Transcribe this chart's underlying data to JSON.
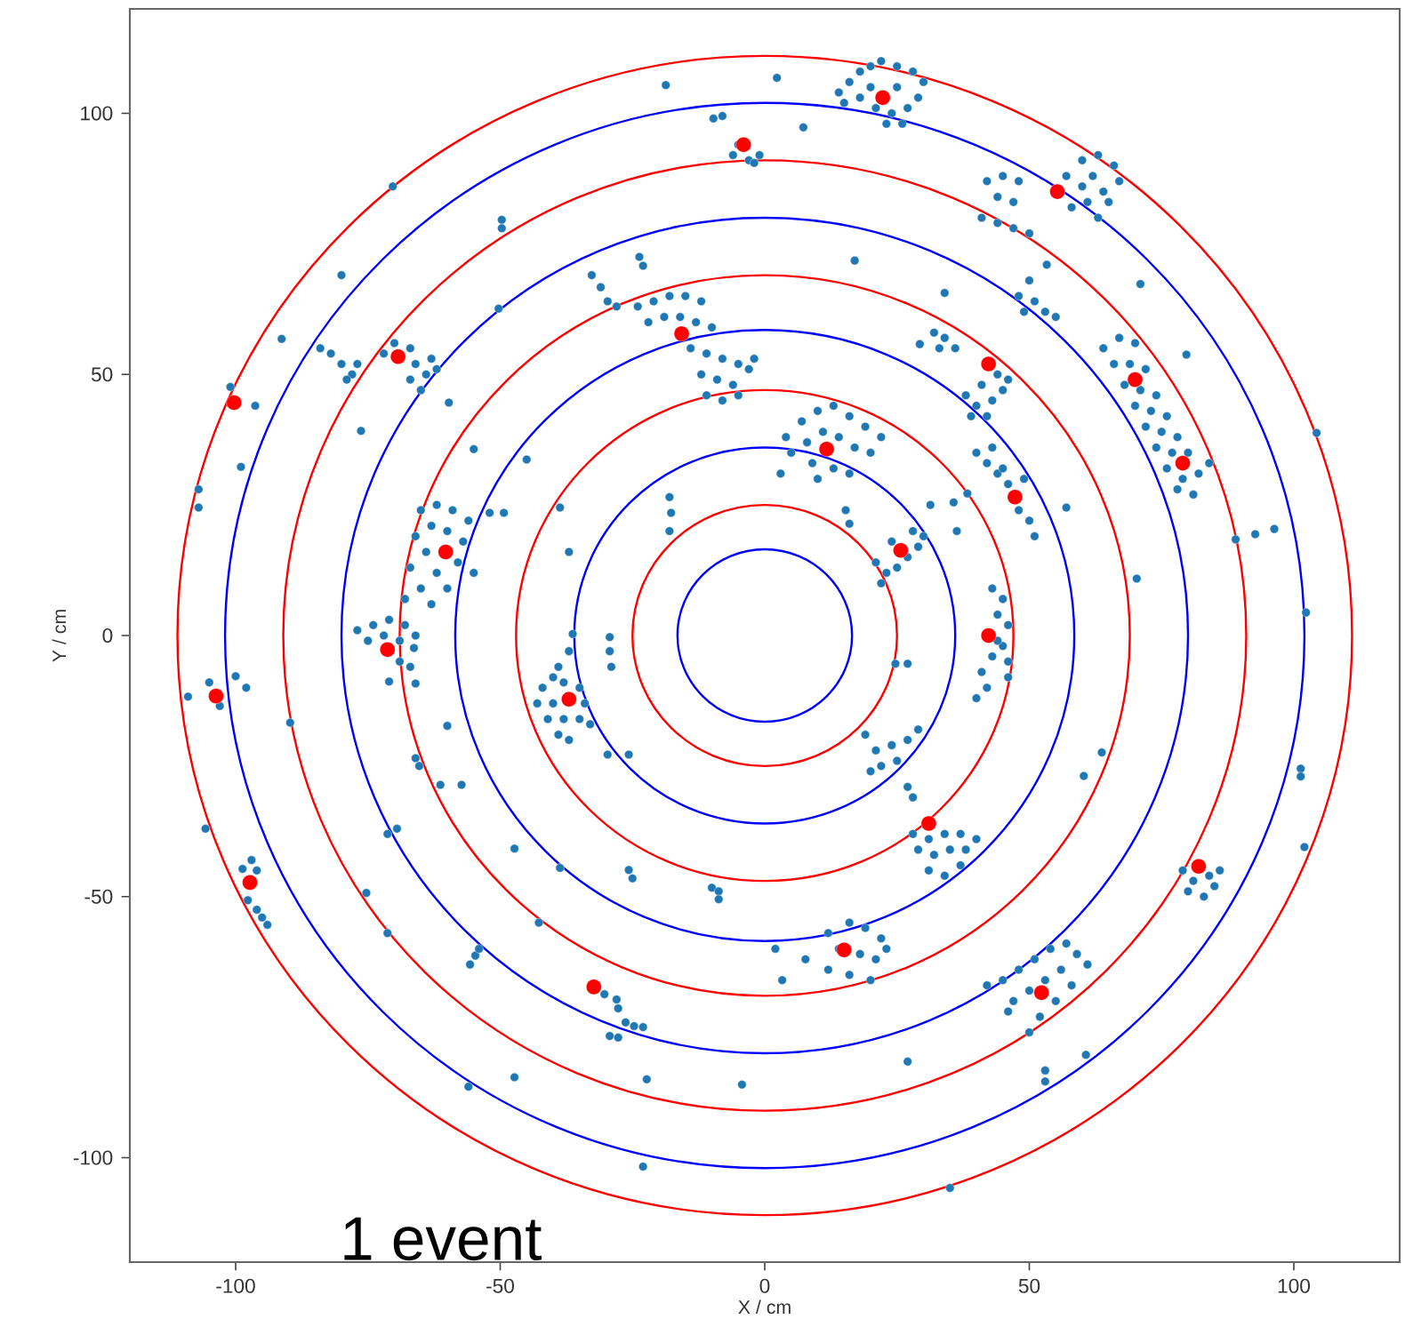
{
  "chart_data": {
    "type": "scatter",
    "xlabel": "X / cm",
    "ylabel": "Y / cm",
    "annotations": [
      "1 event"
    ],
    "xlim": [
      -120,
      120
    ],
    "ylim": [
      -120,
      120
    ],
    "xticks": [
      -100,
      -50,
      0,
      50,
      100
    ],
    "yticks": [
      -100,
      -50,
      0,
      50,
      100
    ],
    "series": [
      {
        "type": "scatter",
        "marker": "circle",
        "color": "#1f77b4",
        "x": [
          14,
          16,
          18,
          20,
          22,
          25,
          28,
          30,
          15,
          18,
          21,
          24,
          27,
          29,
          20,
          25,
          23,
          26,
          -6,
          -3,
          -1,
          -5,
          -9.7,
          -8,
          -2,
          57,
          60,
          63,
          66,
          67,
          64,
          61,
          58,
          62,
          65,
          60,
          63,
          42,
          45,
          48,
          44,
          47,
          41,
          44,
          47,
          50,
          50,
          48,
          51,
          53,
          55,
          49,
          38,
          41,
          44,
          46,
          40,
          43,
          45,
          39,
          42,
          32,
          34,
          36,
          33,
          64,
          67,
          70,
          66,
          69,
          72,
          68,
          71,
          74,
          70,
          73,
          76,
          72,
          75,
          78,
          74,
          77,
          80,
          76,
          79,
          82,
          78,
          84,
          81,
          4,
          7,
          10,
          13,
          16,
          19,
          22,
          5,
          8,
          11,
          14,
          17,
          20,
          9,
          13,
          16,
          10,
          3,
          40,
          42,
          44,
          46,
          43,
          48,
          50,
          51,
          45,
          49,
          21,
          23,
          25,
          27,
          29,
          30,
          24,
          22,
          28,
          43,
          45,
          44,
          46,
          45,
          46,
          43,
          41,
          42,
          40,
          46,
          44,
          19,
          21,
          24,
          27,
          29,
          20,
          22,
          25,
          27,
          28,
          24.7,
          27,
          28,
          31,
          34,
          37,
          40,
          29,
          32,
          35,
          38,
          31,
          34,
          37,
          79,
          81,
          84,
          86,
          80,
          83,
          85,
          12,
          16,
          19,
          22,
          14,
          18,
          21,
          12,
          16,
          20,
          23,
          42,
          45,
          48,
          51,
          54,
          57,
          59,
          61,
          56,
          53,
          50,
          47,
          55,
          58,
          52,
          50,
          46,
          2,
          3.3,
          7.7,
          27,
          53,
          53,
          60.7,
          35,
          60.3,
          63.7,
          101.3,
          101.3,
          102,
          2.3,
          7.3,
          17,
          34,
          29.3,
          53.3,
          71,
          79.7,
          104.3,
          89,
          92.7,
          96.3,
          70.3,
          102.3,
          57,
          36.3,
          31.3,
          35.7,
          15.3,
          16,
          38.3,
          -18.7,
          -70.3,
          -49.7,
          -49.7,
          -80,
          -50.3,
          -91.3,
          -23.7,
          -23,
          -32.7,
          -31,
          -29.7,
          -28,
          -24,
          -21,
          -18,
          -15,
          -12,
          -22,
          -19,
          -16,
          -13,
          -10,
          -14,
          -11,
          -8,
          -5,
          -3,
          -12,
          -9,
          -6,
          -11,
          -8,
          -5,
          -2,
          -72,
          -70,
          -67,
          -66,
          -64,
          -62,
          -65,
          -67,
          -63,
          -84,
          -82,
          -80,
          -78,
          -77,
          -79,
          -101,
          -96.3,
          -99,
          -107,
          -107,
          -76.3,
          -59.7,
          -55,
          -45,
          -52,
          -49.3,
          -38.7,
          -37,
          -18,
          -17.7,
          -18,
          -65,
          -62,
          -59,
          -56,
          -63,
          -60,
          -57,
          -66,
          -64,
          -58,
          -55,
          -67,
          -62,
          -60,
          -65,
          -68,
          -63,
          -77,
          -74,
          -71,
          -68,
          -75,
          -72,
          -69,
          -66,
          -69,
          -67,
          -36.3,
          -37,
          -29.3,
          -29.3,
          -29,
          -42,
          -40,
          -38,
          -35,
          -43,
          -40,
          -34,
          -41,
          -38,
          -35,
          -39,
          -37,
          -33,
          -39,
          -29.7,
          -25.7,
          -66.3,
          -71,
          -66,
          -109,
          -105,
          -100,
          -98,
          -103,
          -89.7,
          -66,
          -65.3,
          -61.3,
          -57.3,
          -60,
          -105.7,
          -98.7,
          -97,
          -96,
          -97.7,
          -96,
          -95,
          -94,
          -71.3,
          -69.5,
          -75.3,
          -71.3,
          -55.7,
          -54.7,
          -54,
          -56,
          -47.3,
          -38.7,
          -42.7,
          -25.7,
          -25,
          -10,
          -8.7,
          -8.7,
          -30.3,
          -28,
          -27.7,
          -26.3,
          -24.7,
          -23,
          -29.3,
          -27.7,
          -47.3,
          -22.3,
          -4.3,
          -23
        ],
        "values": [
          104,
          106,
          108,
          109,
          110,
          109,
          108,
          106,
          102,
          103,
          101,
          100,
          101,
          103,
          105,
          105,
          98,
          98,
          92,
          91,
          92,
          94,
          99,
          99.5,
          90.5,
          88,
          91,
          92,
          90,
          87,
          85,
          83,
          82,
          88,
          83,
          86,
          80,
          87,
          88,
          87,
          84,
          83,
          80,
          79,
          78,
          77,
          68,
          65,
          64,
          62,
          61,
          62,
          46,
          48,
          50,
          49,
          44,
          45,
          47,
          42,
          42,
          58,
          57,
          55,
          55,
          55,
          57,
          56,
          52,
          52,
          51,
          48,
          47,
          46,
          44,
          43,
          42,
          40,
          39,
          38,
          36,
          35,
          35,
          32,
          30,
          31,
          28,
          33,
          27,
          38,
          41,
          43,
          44,
          42,
          40,
          38,
          35,
          37,
          39,
          38,
          36,
          35,
          33,
          32,
          31,
          30,
          31,
          35,
          33,
          31,
          29,
          36,
          24,
          22,
          19,
          32,
          30,
          14,
          12,
          13,
          15,
          17,
          19,
          18,
          10,
          20,
          9,
          7,
          4,
          2,
          -2,
          -5,
          -4,
          -7,
          -10,
          -12,
          -8,
          -1,
          -19,
          -22,
          -21,
          -20,
          -18,
          -26,
          -25,
          -24,
          -29,
          -31,
          -5.4,
          -5.4,
          -38,
          -39,
          -38,
          -38,
          -39,
          -41,
          -42,
          -41,
          -41,
          -45,
          -46,
          -44,
          -45,
          -47,
          -46,
          -45,
          -49,
          -50,
          -48,
          -57,
          -55,
          -56,
          -58,
          -60,
          -61,
          -62,
          -64,
          -65,
          -66,
          -60,
          -67,
          -66,
          -64,
          -62,
          -60,
          -59,
          -61,
          -63,
          -64,
          -66,
          -68,
          -70,
          -70,
          -67,
          -73,
          -76,
          -72,
          -60,
          -66,
          -62,
          -81.6,
          -83.3,
          -85.4,
          -80.3,
          -105.8,
          -26.9,
          -22.4,
          -25.5,
          -27,
          -40.5,
          106.8,
          97.3,
          71.8,
          65.6,
          55.8,
          71,
          67.3,
          53.8,
          38.8,
          18.4,
          19.4,
          20.4,
          10.9,
          4.4,
          24.5,
          20,
          25,
          25.5,
          24,
          21.4,
          27.2,
          105.4,
          86,
          79.6,
          78,
          69,
          62.6,
          56.8,
          72.5,
          70.8,
          69,
          66.7,
          64,
          63,
          63,
          64,
          65,
          65,
          64,
          60,
          61,
          61,
          60,
          59,
          55,
          54,
          53,
          52,
          51,
          50,
          49,
          48,
          46,
          45,
          46,
          53,
          54,
          56,
          55,
          52,
          50,
          51,
          47,
          49,
          53,
          55,
          54,
          52,
          50,
          52,
          49,
          47.6,
          44,
          32.3,
          28,
          24.5,
          39.2,
          44.6,
          35.7,
          33.7,
          23.5,
          23.5,
          24.5,
          16,
          26.5,
          23.5,
          20,
          24,
          25,
          24,
          22,
          21,
          20,
          18,
          19,
          16,
          14,
          12,
          13,
          12,
          9,
          9,
          7,
          6,
          1,
          2,
          3,
          2,
          -1,
          0,
          -1,
          0,
          -5,
          -6,
          0.3,
          -3,
          -0.3,
          -3,
          -6,
          -10,
          -8,
          -9,
          -10,
          -13,
          -13,
          -13,
          -16,
          -16,
          -16,
          -19,
          -20,
          -17,
          -6,
          -22.8,
          -22.8,
          -2.4,
          -8.8,
          -9.2,
          -11.7,
          -9,
          -7.8,
          -10,
          -13.5,
          -16.7,
          -23.5,
          -25,
          -28.6,
          -28.6,
          -17.3,
          -37,
          -44.7,
          -43,
          -45,
          -50.7,
          -52.5,
          -54,
          -55.4,
          -38,
          -37,
          -49.3,
          -57,
          -63,
          -61.3,
          -60,
          -86.4,
          -40.8,
          -44.5,
          -55,
          -44.9,
          -46.5,
          -48.3,
          -49,
          -50.5,
          -68.7,
          -69.7,
          -71.4,
          -74.1,
          -74.8,
          -75,
          -76.7,
          -77,
          -84.6,
          -85,
          -86,
          -101.7
        ]
      },
      {
        "type": "scatter",
        "marker": "circle",
        "color": "#ff0000",
        "x": [
          22.3,
          -4,
          55.3,
          -100.3,
          -69.3,
          -15.7,
          -60.3,
          70,
          42.3,
          79,
          11.7,
          47.3,
          25.7,
          42.3,
          -71.3,
          -103.7,
          -37,
          -97.3,
          -32.3,
          31,
          82,
          15,
          52.3
        ],
        "values": [
          103,
          94,
          85,
          44.6,
          53.4,
          57.8,
          16,
          49,
          52,
          33,
          35.7,
          26.5,
          16.3,
          0,
          -2.7,
          -11.6,
          -12.2,
          -47.3,
          -67.3,
          -36,
          -44.2,
          -60.2,
          -68.4
        ]
      }
    ]
  }
}
